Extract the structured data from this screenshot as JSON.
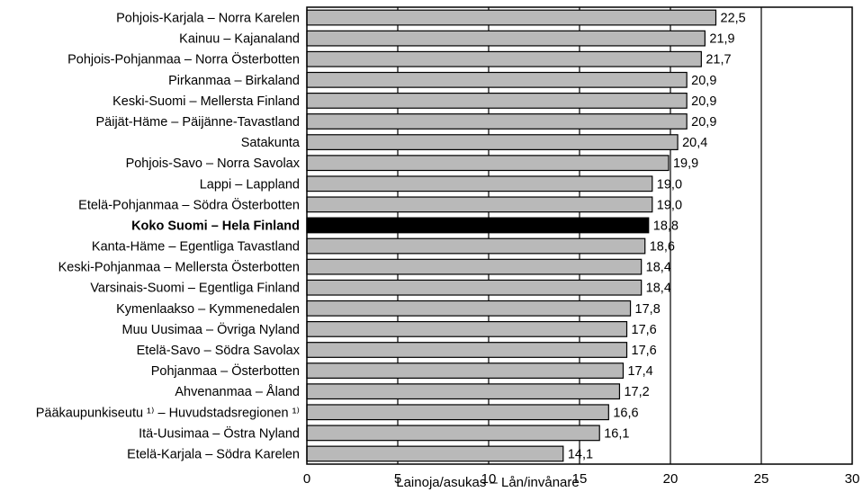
{
  "chart_data": {
    "type": "bar",
    "orientation": "horizontal",
    "categories": [
      "Pohjois-Karjala – Norra Karelen",
      "Kainuu – Kajanaland",
      "Pohjois-Pohjanmaa – Norra Österbotten",
      "Pirkanmaa – Birkaland",
      "Keski-Suomi – Mellersta Finland",
      "Päijät-Häme – Päijänne-Tavastland",
      "Satakunta",
      "Pohjois-Savo – Norra Savolax",
      "Lappi – Lappland",
      "Etelä-Pohjanmaa – Södra Österbotten",
      "Koko Suomi – Hela Finland",
      "Kanta-Häme – Egentliga Tavastland",
      "Keski-Pohjanmaa – Mellersta Österbotten",
      "Varsinais-Suomi – Egentliga Finland",
      "Kymenlaakso – Kymmenedalen",
      "Muu Uusimaa – Övriga Nyland",
      "Etelä-Savo – Södra Savolax",
      "Pohjanmaa – Österbotten",
      "Ahvenanmaa – Åland",
      "Pääkaupunkiseutu ¹⁾ – Huvudstadsregionen ¹⁾",
      "Itä-Uusimaa – Östra Nyland",
      "Etelä-Karjala – Södra Karelen"
    ],
    "values": [
      22.5,
      21.9,
      21.7,
      20.9,
      20.9,
      20.9,
      20.4,
      19.9,
      19.0,
      19.0,
      18.8,
      18.6,
      18.4,
      18.4,
      17.8,
      17.6,
      17.6,
      17.4,
      17.2,
      16.6,
      16.1,
      14.1
    ],
    "value_labels": [
      "22,5",
      "21,9",
      "21,7",
      "20,9",
      "20,9",
      "20,9",
      "20,4",
      "19,9",
      "19,0",
      "19,0",
      "18,8",
      "18,6",
      "18,4",
      "18,4",
      "17,8",
      "17,6",
      "17,6",
      "17,4",
      "17,2",
      "16,6",
      "16,1",
      "14,1"
    ],
    "highlight_index": 10,
    "x_ticks": [
      "0",
      "5",
      "10",
      "15",
      "20",
      "25",
      "30"
    ],
    "xlim": [
      0,
      30
    ],
    "xlabel": "Lainoja/asukas – Lån/invånare",
    "title": "",
    "grid": "vertical",
    "colors": {
      "bar": "#b9b9b9",
      "highlight": "#000000",
      "axis": "#000000"
    }
  }
}
